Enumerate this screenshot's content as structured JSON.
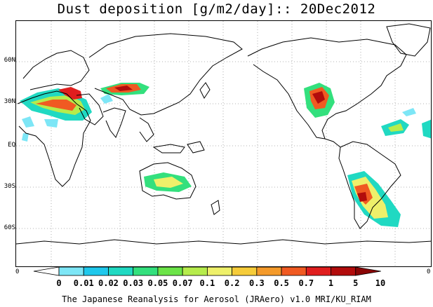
{
  "title": "Dust deposition [g/m2/day]:: 20Dec2012",
  "lat_labels": [
    "60N",
    "30N",
    "EQ",
    "30S",
    "60S"
  ],
  "edge_left": "0",
  "edge_right": "0",
  "colorbar": {
    "labels": [
      "0",
      "0.01",
      "0.02",
      "0.03",
      "0.05",
      "0.07",
      "0.1",
      "0.2",
      "0.3",
      "0.5",
      "0.7",
      "1",
      "5",
      "10"
    ],
    "colors": [
      "#ffffff",
      "#7de6f6",
      "#1fc8ec",
      "#20d9c2",
      "#33e07d",
      "#6ce448",
      "#b6ec4c",
      "#eef06a",
      "#f6cc3a",
      "#f49a2a",
      "#f05a22",
      "#e01e1e",
      "#b20c0c",
      "#8a0606"
    ]
  },
  "footer": "The Japanese Reanalysis for Aerosol (JRAero) v1.0 MRI/KU_RIAM"
}
